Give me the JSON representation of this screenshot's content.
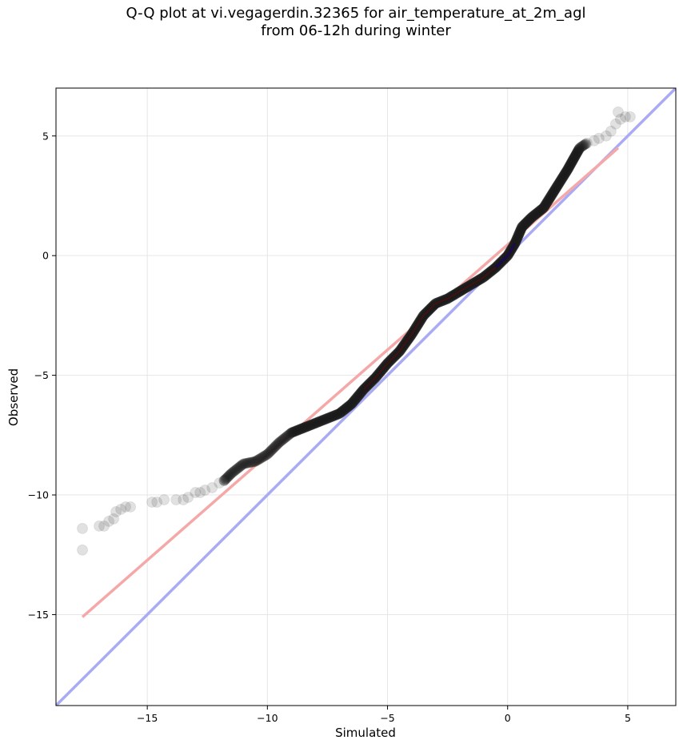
{
  "chart_data": {
    "type": "scatter",
    "title_line1": "Q-Q plot at vi.vegagerdin.32365 for air_temperature_at_2m_agl",
    "title_line2": "from 06-12h during winter",
    "xlabel": "Simulated",
    "ylabel": "Observed",
    "xlim": [
      -18.8,
      7.0
    ],
    "ylim": [
      -18.8,
      7.0
    ],
    "x_ticks": [
      -15,
      -10,
      -5,
      0,
      5
    ],
    "y_ticks": [
      -15,
      -10,
      -5,
      0,
      5
    ],
    "x_tick_labels": [
      "−15",
      "−10",
      "−5",
      "0",
      "5"
    ],
    "y_tick_labels": [
      "−15",
      "−10",
      "−5",
      "0",
      "5"
    ],
    "grid": true,
    "colors": {
      "points": "#1a1a1a",
      "identity_line": "#aaaaf5",
      "fit_line": "#f5a8a8",
      "fit_overlay": "#8b0000",
      "identity_overlay": "#00008b"
    },
    "identity_line": {
      "from": [
        -18.8,
        -18.8
      ],
      "to": [
        7.0,
        7.0
      ]
    },
    "fit_line": {
      "from": [
        -17.7,
        -15.1
      ],
      "to": [
        4.6,
        4.5
      ]
    },
    "tail_points": [
      [
        -17.7,
        -12.3
      ],
      [
        -17.7,
        -11.4
      ],
      [
        -17.0,
        -11.3
      ],
      [
        -16.8,
        -11.3
      ],
      [
        -16.6,
        -11.1
      ],
      [
        -16.4,
        -11.0
      ],
      [
        -16.3,
        -10.7
      ],
      [
        -16.1,
        -10.6
      ],
      [
        -15.9,
        -10.5
      ],
      [
        -15.7,
        -10.5
      ],
      [
        -14.8,
        -10.3
      ],
      [
        -14.6,
        -10.3
      ],
      [
        -14.3,
        -10.2
      ],
      [
        -13.8,
        -10.2
      ],
      [
        -13.5,
        -10.2
      ],
      [
        -13.3,
        -10.1
      ],
      [
        -13.0,
        -9.9
      ],
      [
        -12.8,
        -9.9
      ],
      [
        -12.6,
        -9.8
      ],
      [
        -12.3,
        -9.7
      ],
      [
        -12.0,
        -9.5
      ],
      [
        -11.8,
        -9.4
      ],
      [
        3.3,
        4.7
      ],
      [
        3.6,
        4.8
      ],
      [
        3.8,
        4.9
      ],
      [
        4.1,
        5.0
      ],
      [
        4.3,
        5.2
      ],
      [
        4.5,
        5.5
      ],
      [
        4.7,
        5.7
      ],
      [
        4.9,
        5.8
      ],
      [
        5.1,
        5.8
      ],
      [
        4.6,
        6.0
      ]
    ],
    "quantile_curve": [
      [
        -11.8,
        -9.4
      ],
      [
        -11.5,
        -9.1
      ],
      [
        -11.0,
        -8.7
      ],
      [
        -10.5,
        -8.6
      ],
      [
        -10.0,
        -8.3
      ],
      [
        -9.5,
        -7.8
      ],
      [
        -9.0,
        -7.4
      ],
      [
        -8.5,
        -7.2
      ],
      [
        -8.0,
        -7.0
      ],
      [
        -7.5,
        -6.8
      ],
      [
        -7.0,
        -6.6
      ],
      [
        -6.5,
        -6.2
      ],
      [
        -6.0,
        -5.6
      ],
      [
        -5.5,
        -5.1
      ],
      [
        -5.0,
        -4.5
      ],
      [
        -4.5,
        -4.0
      ],
      [
        -4.0,
        -3.3
      ],
      [
        -3.5,
        -2.5
      ],
      [
        -3.0,
        -2.0
      ],
      [
        -2.5,
        -1.8
      ],
      [
        -2.0,
        -1.5
      ],
      [
        -1.5,
        -1.2
      ],
      [
        -1.0,
        -0.9
      ],
      [
        -0.5,
        -0.5
      ],
      [
        0.0,
        0.0
      ],
      [
        0.3,
        0.5
      ],
      [
        0.6,
        1.2
      ],
      [
        1.0,
        1.6
      ],
      [
        1.5,
        2.0
      ],
      [
        2.0,
        2.8
      ],
      [
        2.5,
        3.6
      ],
      [
        3.0,
        4.5
      ],
      [
        3.3,
        4.7
      ]
    ]
  }
}
